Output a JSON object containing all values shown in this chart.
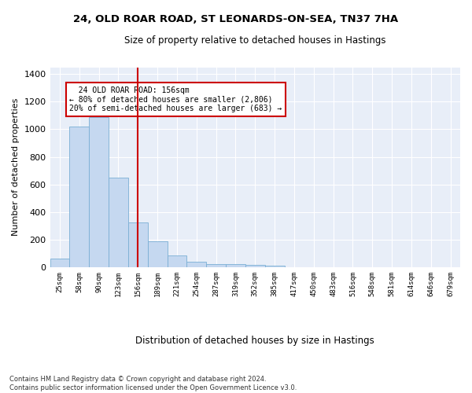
{
  "title": "24, OLD ROAR ROAD, ST LEONARDS-ON-SEA, TN37 7HA",
  "subtitle": "Size of property relative to detached houses in Hastings",
  "xlabel": "Distribution of detached houses by size in Hastings",
  "ylabel": "Number of detached properties",
  "categories": [
    "25sqm",
    "58sqm",
    "90sqm",
    "123sqm",
    "156sqm",
    "189sqm",
    "221sqm",
    "254sqm",
    "287sqm",
    "319sqm",
    "352sqm",
    "385sqm",
    "417sqm",
    "450sqm",
    "483sqm",
    "516sqm",
    "548sqm",
    "581sqm",
    "614sqm",
    "646sqm",
    "679sqm"
  ],
  "values": [
    62,
    1020,
    1090,
    650,
    325,
    190,
    85,
    42,
    25,
    20,
    15,
    10,
    0,
    0,
    0,
    0,
    0,
    0,
    0,
    0,
    0
  ],
  "bar_color": "#c5d8f0",
  "bar_edge_color": "#7aafd4",
  "red_line_index": 4,
  "red_line_color": "#cc0000",
  "annotation_text": "  24 OLD ROAR ROAD: 156sqm\n← 80% of detached houses are smaller (2,806)\n20% of semi-detached houses are larger (683) →",
  "annotation_box_color": "#ffffff",
  "annotation_box_edge": "#cc0000",
  "ylim": [
    0,
    1450
  ],
  "yticks": [
    0,
    200,
    400,
    600,
    800,
    1000,
    1200,
    1400
  ],
  "footnote": "Contains HM Land Registry data © Crown copyright and database right 2024.\nContains public sector information licensed under the Open Government Licence v3.0.",
  "plot_bg": "#e8eef8"
}
